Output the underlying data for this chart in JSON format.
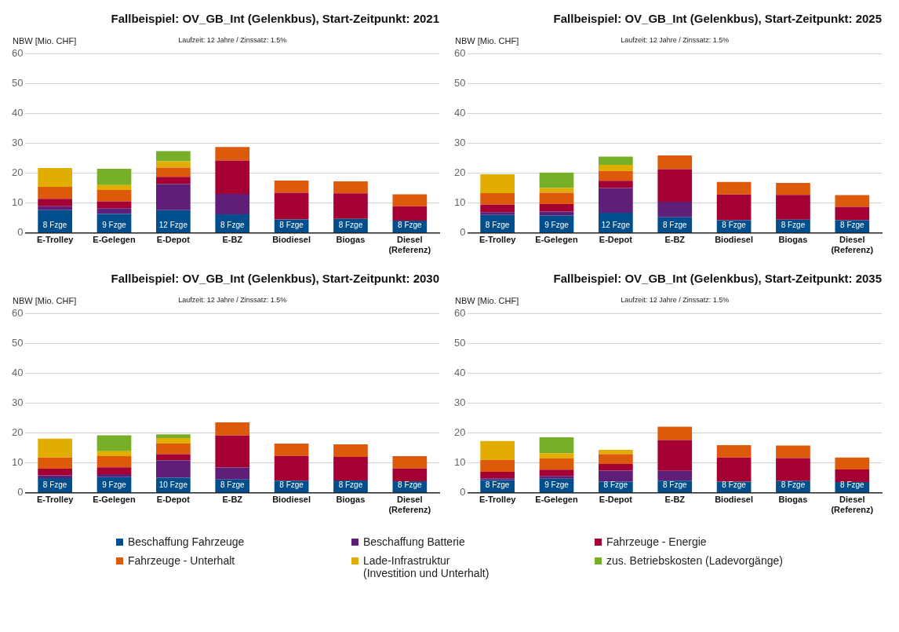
{
  "chart_data": [
    {
      "type": "bar",
      "title": "Fallbeispiel: OV_GB_Int (Gelenkbus), Start-Zeitpunkt: 2021",
      "subtitle": "Laufzeit: 12 Jahre / Zinssatz: 1.5%",
      "ylabel": "NBW [Mio. CHF]",
      "categories": [
        "E-Trolley",
        "E-Gelegen",
        "E-Depot",
        "E-BZ",
        "Biodiesel",
        "Biogas",
        "Diesel\n(Referenz)"
      ],
      "stacked": true,
      "ylim": [
        0,
        60
      ],
      "yticks": [
        0,
        10,
        20,
        30,
        40,
        50,
        60
      ],
      "grid": "y",
      "legend": "bottom",
      "annotations": [
        "8 Fzge",
        "9 Fzge",
        "12 Fzge",
        "8 Fzge",
        "8 Fzge",
        "8 Fzge",
        "8 Fzge"
      ],
      "series": [
        {
          "name": "Beschaffung Fahrzeuge",
          "color": "#004f8c",
          "values": [
            7.6,
            6.3,
            7.6,
            6.2,
            4.5,
            4.7,
            4.1
          ]
        },
        {
          "name": "Beschaffung Batterie",
          "color": "#5f1e78",
          "values": [
            1.3,
            1.9,
            8.7,
            6.8,
            null,
            null,
            null
          ]
        },
        {
          "name": "Fahrzeuge - Energie",
          "color": "#a50034",
          "values": [
            2.5,
            2.3,
            2.4,
            11.2,
            8.9,
            8.5,
            4.8
          ]
        },
        {
          "name": "Fahrzeuge - Unterhalt",
          "color": "#dc5a0a",
          "values": [
            4.0,
            3.8,
            3.1,
            4.5,
            4.1,
            4.0,
            4.0
          ]
        },
        {
          "name": "Lade-Infrastruktur\n(Investition und Unterhalt)",
          "color": "#e1ad00",
          "values": [
            6.3,
            1.7,
            2.1,
            null,
            null,
            null,
            null
          ]
        },
        {
          "name": "zus. Betriebskosten (Ladevorgänge)",
          "color": "#78af28",
          "values": [
            null,
            5.4,
            3.4,
            null,
            null,
            null,
            null
          ]
        }
      ]
    },
    {
      "type": "bar",
      "title": "Fallbeispiel: OV_GB_Int (Gelenkbus), Start-Zeitpunkt: 2025",
      "subtitle": "Laufzeit: 12 Jahre / Zinssatz: 1.5%",
      "ylabel": "NBW [Mio. CHF]",
      "categories": [
        "E-Trolley",
        "E-Gelegen",
        "E-Depot",
        "E-BZ",
        "Biodiesel",
        "Biogas",
        "Diesel\n(Referenz)"
      ],
      "stacked": true,
      "ylim": [
        0,
        60
      ],
      "yticks": [
        0,
        10,
        20,
        30,
        40,
        50,
        60
      ],
      "grid": "y",
      "annotations": [
        "8 Fzge",
        "9 Fzge",
        "12 Fzge",
        "8 Fzge",
        "8 Fzge",
        "8 Fzge",
        "8 Fzge"
      ],
      "series": [
        {
          "color": "#004f8c",
          "values": [
            6.0,
            5.8,
            6.7,
            5.2,
            4.2,
            4.4,
            4.2
          ]
        },
        {
          "color": "#5f1e78",
          "values": [
            0.9,
            1.3,
            8.3,
            5.2,
            null,
            null,
            null
          ]
        },
        {
          "color": "#a50034",
          "values": [
            2.5,
            2.5,
            2.4,
            10.9,
            8.6,
            8.3,
            4.5
          ]
        },
        {
          "color": "#dc5a0a",
          "values": [
            3.9,
            3.8,
            3.3,
            4.6,
            4.2,
            4.0,
            3.9
          ]
        },
        {
          "color": "#e1ad00",
          "values": [
            6.3,
            1.6,
            2.0,
            null,
            null,
            null,
            null
          ]
        },
        {
          "color": "#78af28",
          "values": [
            null,
            5.2,
            2.8,
            null,
            null,
            null,
            null
          ]
        }
      ]
    },
    {
      "type": "bar",
      "title": "Fallbeispiel: OV_GB_Int (Gelenkbus), Start-Zeitpunkt: 2030",
      "subtitle": "Laufzeit: 12 Jahre / Zinssatz: 1.5%",
      "ylabel": "NBW [Mio. CHF]",
      "categories": [
        "E-Trolley",
        "E-Gelegen",
        "E-Depot",
        "E-BZ",
        "Biodiesel",
        "Biogas",
        "Diesel\n(Referenz)"
      ],
      "stacked": true,
      "ylim": [
        0,
        60
      ],
      "yticks": [
        0,
        10,
        20,
        30,
        40,
        50,
        60
      ],
      "grid": "y",
      "annotations": [
        "8 Fzge",
        "9 Fzge",
        "10 Fzge",
        "8 Fzge",
        "8 Fzge",
        "8 Fzge",
        "8 Fzge"
      ],
      "series": [
        {
          "color": "#004f8c",
          "values": [
            4.9,
            5.2,
            5.0,
            4.4,
            4.0,
            4.1,
            3.8
          ]
        },
        {
          "color": "#5f1e78",
          "values": [
            0.9,
            1.0,
            5.8,
            4.0,
            null,
            null,
            null
          ]
        },
        {
          "color": "#a50034",
          "values": [
            2.2,
            2.3,
            2.1,
            10.7,
            8.3,
            7.9,
            4.3
          ]
        },
        {
          "color": "#dc5a0a",
          "values": [
            3.8,
            3.7,
            3.5,
            4.4,
            4.1,
            4.2,
            4.1
          ]
        },
        {
          "color": "#e1ad00",
          "values": [
            6.3,
            1.7,
            1.9,
            null,
            null,
            null,
            null
          ]
        },
        {
          "color": "#78af28",
          "values": [
            null,
            5.3,
            1.2,
            null,
            null,
            null,
            null
          ]
        }
      ]
    },
    {
      "type": "bar",
      "title": "Fallbeispiel: OV_GB_Int (Gelenkbus), Start-Zeitpunkt: 2035",
      "subtitle": "Laufzeit: 12 Jahre / Zinssatz: 1.5%",
      "ylabel": "NBW [Mio. CHF]",
      "categories": [
        "E-Trolley",
        "E-Gelegen",
        "E-Depot",
        "E-BZ",
        "Biodiesel",
        "Biogas",
        "Diesel\n(Referenz)"
      ],
      "stacked": true,
      "ylim": [
        0,
        60
      ],
      "yticks": [
        0,
        10,
        20,
        30,
        40,
        50,
        60
      ],
      "grid": "y",
      "annotations": [
        "8 Fzge",
        "9 Fzge",
        "8 Fzge",
        "8 Fzge",
        "8 Fzge",
        "8 Fzge",
        "8 Fzge"
      ],
      "series": [
        {
          "color": "#004f8c",
          "values": [
            4.2,
            4.7,
            3.7,
            4.0,
            3.7,
            3.9,
            3.6
          ]
        },
        {
          "color": "#5f1e78",
          "values": [
            0.6,
            0.9,
            3.7,
            3.3,
            null,
            null,
            null
          ]
        },
        {
          "color": "#a50034",
          "values": [
            2.2,
            2.1,
            2.2,
            10.3,
            8.1,
            7.7,
            4.2
          ]
        },
        {
          "color": "#dc5a0a",
          "values": [
            4.0,
            3.8,
            3.3,
            4.5,
            4.1,
            4.2,
            4.0
          ]
        },
        {
          "color": "#e1ad00",
          "values": [
            6.3,
            1.7,
            1.4,
            null,
            null,
            null,
            null
          ]
        },
        {
          "color": "#78af28",
          "values": [
            null,
            5.3,
            null,
            null,
            null,
            null,
            null
          ]
        }
      ]
    }
  ]
}
